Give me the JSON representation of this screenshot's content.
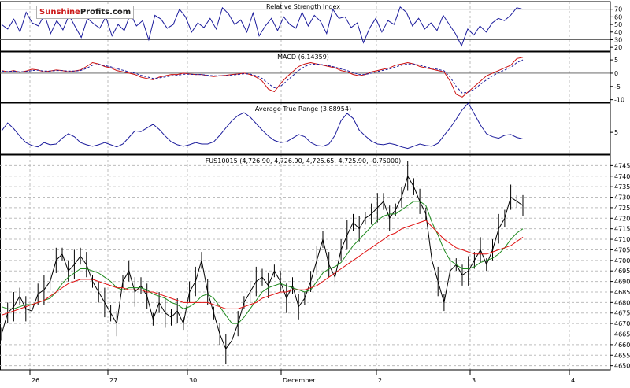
{
  "logo": {
    "part1": "Sunshine",
    "part2": "Profits.com"
  },
  "colors": {
    "price": "#000000",
    "ma_short": "#1f8a1f",
    "ma_long": "#e01010",
    "indicator": "#1c1c9c",
    "macd_signal": "#cc1010",
    "grid": "#bdbdbd",
    "frame": "#000000"
  },
  "chart_data": [
    {
      "type": "line",
      "title": "Relative Strength Index",
      "y_ticks": [
        "70",
        "60",
        "50",
        "40",
        "30",
        "20"
      ],
      "ylim": [
        15,
        80
      ],
      "reference_lines": [
        70,
        30
      ],
      "series": [
        {
          "name": "",
          "values": [
            50,
            44,
            57,
            40,
            66,
            52,
            48,
            63,
            38,
            55,
            43,
            62,
            47,
            33,
            58,
            51,
            45,
            60,
            35,
            50,
            42,
            64,
            48,
            55,
            30,
            62,
            57,
            45,
            50,
            70,
            60,
            40,
            52,
            46,
            58,
            44,
            72,
            64,
            50,
            56,
            40,
            65,
            35,
            48,
            58,
            42,
            60,
            50,
            45,
            66,
            48,
            62,
            54,
            38,
            70,
            58,
            60,
            46,
            52,
            26,
            45,
            58,
            40,
            55,
            50,
            73,
            66,
            48,
            58,
            44,
            52,
            42,
            62,
            50,
            38,
            22,
            44,
            36,
            48,
            40,
            52,
            58,
            55,
            62,
            72,
            70
          ]
        }
      ]
    },
    {
      "type": "line",
      "title": "MACD (6.14359)",
      "y_ticks": [
        "5",
        "0",
        "-5",
        "-10"
      ],
      "ylim": [
        -11,
        8
      ],
      "reference_lines": [
        0
      ],
      "series": [
        {
          "name": "",
          "values": [
            1,
            0.5,
            1,
            0.3,
            0.8,
            1.5,
            1.2,
            0.5,
            0.8,
            1.2,
            1,
            0.5,
            0.8,
            1.2,
            2.5,
            4,
            3.5,
            2.5,
            2,
            1,
            0.5,
            0,
            -0.5,
            -1.5,
            -2,
            -2.5,
            -1.5,
            -1,
            -0.5,
            -0.5,
            0,
            -0.3,
            -0.5,
            -0.5,
            -1,
            -1.3,
            -1,
            -0.8,
            -0.5,
            -0.3,
            0,
            -0.5,
            -1.5,
            -3,
            -6,
            -7,
            -4,
            -1.5,
            0.5,
            2.5,
            3.5,
            4,
            3.5,
            3,
            2.5,
            2,
            1,
            0.5,
            -0.5,
            -1,
            -0.5,
            0.5,
            1,
            1.5,
            2,
            3,
            3.5,
            4,
            3.5,
            2.5,
            2,
            1.5,
            1,
            0.5,
            -3,
            -8,
            -9,
            -7,
            -5,
            -3,
            -1,
            0,
            1,
            2,
            3,
            5.5,
            6
          ]
        },
        {
          "name": "",
          "values": [
            0.8,
            0.6,
            0.8,
            0.5,
            0.6,
            1,
            1.1,
            0.8,
            0.8,
            1,
            1,
            0.8,
            0.8,
            1,
            1.8,
            3,
            3.3,
            2.9,
            2.4,
            1.7,
            1.1,
            0.5,
            0,
            -0.8,
            -1.4,
            -2,
            -1.8,
            -1.4,
            -1,
            -0.8,
            -0.4,
            -0.4,
            -0.5,
            -0.5,
            -0.8,
            -1,
            -1,
            -0.9,
            -0.7,
            -0.5,
            -0.2,
            -0.3,
            -1,
            -2,
            -4,
            -5.5,
            -5,
            -3,
            -1,
            1,
            2.5,
            3.3,
            3.5,
            3.2,
            2.8,
            2.3,
            1.6,
            1,
            0.2,
            -0.5,
            -0.5,
            0,
            0.6,
            1.1,
            1.6,
            2.4,
            3,
            3.5,
            3.5,
            3,
            2.4,
            1.9,
            1.4,
            0.9,
            -1.5,
            -5,
            -7.5,
            -7.2,
            -6,
            -4.2,
            -2.5,
            -1,
            0.2,
            1.2,
            2.2,
            4,
            5
          ]
        }
      ]
    },
    {
      "type": "line",
      "title": "Average True Range (3.88954)",
      "y_ticks": [
        "5"
      ],
      "ylim": [
        2,
        9
      ],
      "series": [
        {
          "name": "",
          "values": [
            5.2,
            6.3,
            5.5,
            4.5,
            3.6,
            3.2,
            3,
            3.6,
            3.3,
            3.4,
            4.2,
            4.8,
            4.4,
            3.6,
            3.3,
            3.1,
            3.3,
            3.6,
            3.3,
            3,
            3.4,
            4.3,
            5.2,
            5.1,
            5.6,
            6.1,
            5.4,
            4.5,
            3.7,
            3.3,
            3.1,
            3.3,
            3.6,
            3.4,
            3.4,
            3.7,
            4.6,
            5.6,
            6.6,
            7.3,
            7.7,
            7.1,
            6.2,
            5.3,
            4.5,
            3.9,
            3.6,
            3.7,
            4.2,
            4.7,
            4.4,
            3.6,
            3.2,
            3.1,
            3.4,
            4.6,
            6.6,
            7.6,
            6.9,
            5.3,
            4.5,
            3.8,
            3.4,
            3.3,
            3.5,
            3.3,
            3,
            2.8,
            3.1,
            3.4,
            3.2,
            3.1,
            3.5,
            4.6,
            5.6,
            6.8,
            8.1,
            9,
            7.5,
            6,
            4.8,
            4.4,
            4.2,
            4.6,
            4.7,
            4.3,
            4.1
          ]
        }
      ]
    },
    {
      "type": "line",
      "title": "FUS10015 (4,726.90, 4,726.90, 4,725.65, 4,725.90, -0.75000)",
      "y_ticks": [
        "4745",
        "4740",
        "4735",
        "4730",
        "4725",
        "4720",
        "4715",
        "4710",
        "4705",
        "4700",
        "4695",
        "4690",
        "4685",
        "4680",
        "4675",
        "4670",
        "4665",
        "4660",
        "4655",
        "4650"
      ],
      "ylim": [
        4648,
        4750
      ],
      "x_ticks": [
        "26",
        "27",
        "30",
        "December",
        "2",
        "3",
        "4"
      ],
      "grid": true,
      "series": [
        {
          "name": "",
          "values": [
            4665,
            4675,
            4678,
            4683,
            4677,
            4676,
            4684,
            4686,
            4690,
            4700,
            4703,
            4695,
            4698,
            4702,
            4698,
            4690,
            4685,
            4680,
            4675,
            4670,
            4690,
            4695,
            4685,
            4688,
            4683,
            4672,
            4680,
            4675,
            4673,
            4676,
            4670,
            4685,
            4690,
            4700,
            4685,
            4675,
            4665,
            4658,
            4662,
            4670,
            4680,
            4685,
            4690,
            4692,
            4688,
            4695,
            4690,
            4682,
            4688,
            4678,
            4682,
            4690,
            4700,
            4710,
            4698,
            4692,
            4705,
            4712,
            4718,
            4715,
            4720,
            4722,
            4725,
            4728,
            4720,
            4724,
            4730,
            4740,
            4735,
            4728,
            4722,
            4700,
            4690,
            4680,
            4695,
            4698,
            4693,
            4695,
            4700,
            4705,
            4698,
            4705,
            4715,
            4720,
            4730,
            4728,
            4726
          ]
        },
        {
          "name": "",
          "values": [
            4678,
            4677,
            4677,
            4678,
            4679,
            4679,
            4680,
            4681,
            4682,
            4685,
            4689,
            4692,
            4694,
            4696,
            4696,
            4695,
            4694,
            4692,
            4690,
            4687,
            4686,
            4687,
            4687,
            4687,
            4686,
            4684,
            4683,
            4682,
            4680,
            4679,
            4677,
            4678,
            4680,
            4683,
            4684,
            4682,
            4678,
            4674,
            4670,
            4670,
            4673,
            4677,
            4681,
            4685,
            4687,
            4688,
            4689,
            4688,
            4687,
            4686,
            4685,
            4686,
            4690,
            4694,
            4696,
            4697,
            4699,
            4703,
            4707,
            4710,
            4713,
            4716,
            4719,
            4721,
            4722,
            4722,
            4724,
            4726,
            4728,
            4728,
            4726,
            4718,
            4712,
            4705,
            4700,
            4698,
            4696,
            4696,
            4697,
            4699,
            4700,
            4701,
            4703,
            4706,
            4710,
            4713,
            4715
          ]
        },
        {
          "name": "",
          "values": [
            4674,
            4675,
            4676,
            4677,
            4678,
            4679,
            4680,
            4681,
            4683,
            4685,
            4687,
            4689,
            4690,
            4691,
            4691,
            4691,
            4690,
            4689,
            4688,
            4687,
            4687,
            4686,
            4686,
            4686,
            4685,
            4685,
            4684,
            4683,
            4682,
            4681,
            4680,
            4680,
            4680,
            4680,
            4680,
            4679,
            4678,
            4677,
            4677,
            4677,
            4678,
            4679,
            4680,
            4682,
            4683,
            4684,
            4685,
            4685,
            4686,
            4686,
            4686,
            4687,
            4688,
            4690,
            4692,
            4694,
            4696,
            4698,
            4700,
            4702,
            4704,
            4706,
            4708,
            4710,
            4712,
            4713,
            4715,
            4716,
            4717,
            4718,
            4719,
            4716,
            4713,
            4710,
            4708,
            4706,
            4705,
            4704,
            4703,
            4703,
            4703,
            4704,
            4705,
            4706,
            4707,
            4709,
            4711
          ]
        }
      ]
    }
  ]
}
